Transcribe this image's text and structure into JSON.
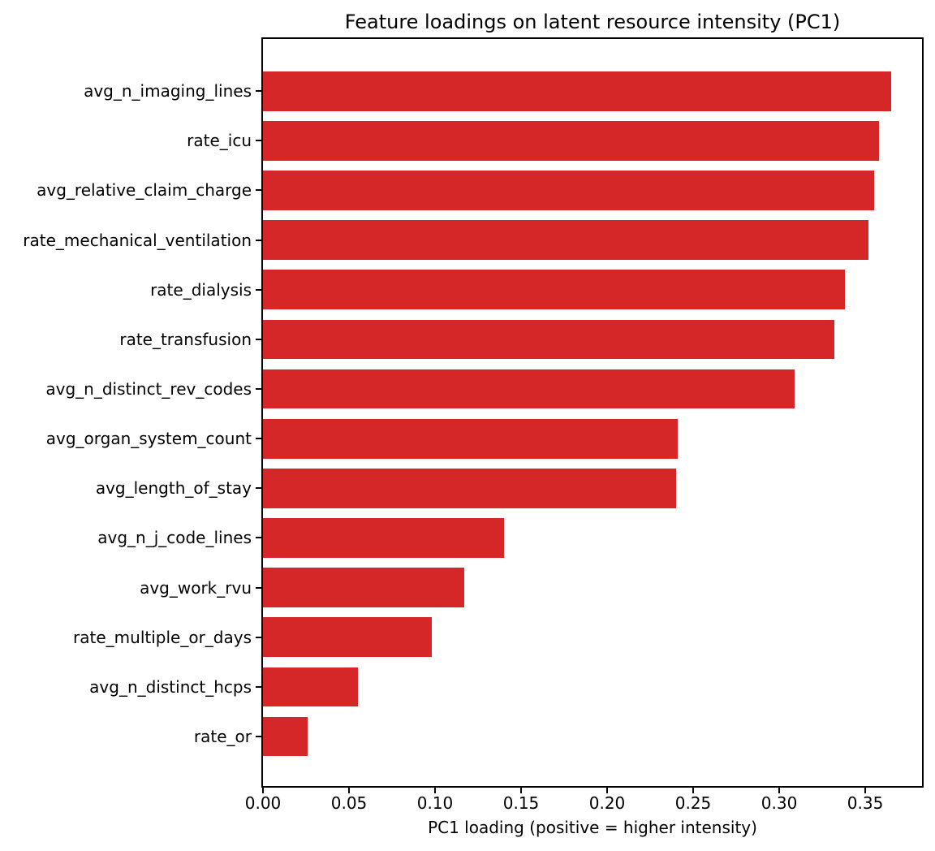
{
  "chart_data": {
    "type": "bar",
    "orientation": "horizontal",
    "title": "Feature loadings on latent resource intensity (PC1)",
    "xlabel": "PC1 loading (positive = higher intensity)",
    "ylabel": "",
    "categories": [
      "avg_n_imaging_lines",
      "rate_icu",
      "avg_relative_claim_charge",
      "rate_mechanical_ventilation",
      "rate_dialysis",
      "rate_transfusion",
      "avg_n_distinct_rev_codes",
      "avg_organ_system_count",
      "avg_length_of_stay",
      "avg_n_j_code_lines",
      "avg_work_rvu",
      "rate_multiple_or_days",
      "avg_n_distinct_hcps",
      "rate_or"
    ],
    "values": [
      0.365,
      0.358,
      0.355,
      0.352,
      0.338,
      0.332,
      0.309,
      0.241,
      0.24,
      0.14,
      0.117,
      0.098,
      0.055,
      0.026
    ],
    "xlim": [
      0,
      0.383
    ],
    "xticks": [
      0.0,
      0.05,
      0.1,
      0.15,
      0.2,
      0.25,
      0.3,
      0.35
    ],
    "xtick_labels": [
      "0.00",
      "0.05",
      "0.10",
      "0.15",
      "0.20",
      "0.25",
      "0.30",
      "0.35"
    ],
    "bar_color": "#d62728",
    "spine_color": "#000000",
    "text_color": "#000000",
    "grid": false,
    "legend": null
  }
}
